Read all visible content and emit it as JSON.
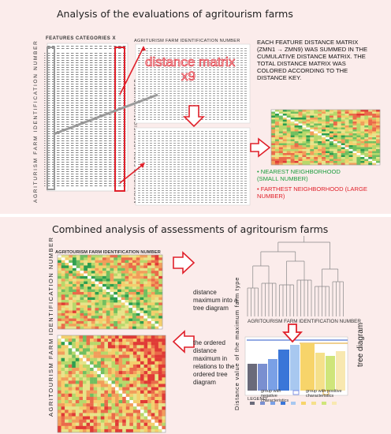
{
  "top": {
    "title": "Analysis of the evaluations of agritourism farms",
    "features_header": "FEATURES CATEGORIES X",
    "farm_id_header": "AGRITURISM FARM IDENTIFICATION NUMBER",
    "vertical_id_label": "AGRITURISM FARM IDENTIFICATION NUMBER",
    "vertical_id_label2": "AGRITURISM FARM IDENTIFICATION NUMBER",
    "overlay_text": "distance matrix",
    "overlay_count": "x9",
    "note": "EACH FEATURE DISTANCE MATRIX (ZMN1 → ZMN9) WAS SUMMED IN THE CUMULATIVE DISTANCE MATRIX. THE TOTAL DISTANCE MATRIX WAS COLORED ACCORDING TO THE DISTANCE KEY.",
    "nearest": "• NEAREST NEIGHBORHOOD (SMALL NUMBER)",
    "farthest": "• FARTHEST NEIGHBORHOOD (LARGE NUMBER)",
    "colors": {
      "nearest": "#1a9c3c",
      "farthest": "#e0202a",
      "arrow": "#e0202a"
    }
  },
  "bottom": {
    "title": "Combined analysis of assessments of agritourism farms",
    "matrix_header": "AGRITOURISM FARM IDENTIFICATION NUMBER",
    "vertical_id_label": "AGRITOURISM FARM IDENTIFICATION NUMBER",
    "arrow1_text": "distance maximum into a tree diagram",
    "arrow2_text": "the ordered distance maximum in relations to the ordered tree diagram",
    "tree_xlabel": "AGRITOURISM FARM IDENTIFICATION NUMBER",
    "tree_ylabel": "Distance value of the maximum farm type",
    "tree_side_label": "tree diagram",
    "legend_label": "LEGEND:",
    "legend_neg": "group with negative characteristics",
    "legend_pos": "group with positive characteristics"
  }
}
